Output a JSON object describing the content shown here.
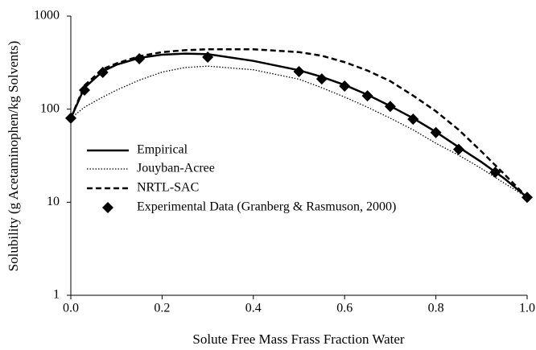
{
  "chart_data": {
    "type": "line",
    "xlabel": "Solute Free Mass Frass Fraction Water",
    "ylabel": "Solubility (g Acetaminophen/kg Solvents)",
    "xlim": [
      0,
      1
    ],
    "ylim": [
      1,
      1000
    ],
    "ylog": true,
    "xticks": [
      {
        "value": 0,
        "label": "0.0"
      },
      0.2,
      0.4,
      0.6,
      0.8,
      {
        "value": 1,
        "label": "1.0"
      }
    ],
    "yticks": [
      1,
      10,
      100,
      1000
    ],
    "legend": "center-left",
    "series": [
      {
        "name": "Empirical",
        "color": "#000000",
        "dash": "solid",
        "x": [
          0,
          0.03,
          0.07,
          0.1,
          0.15,
          0.2,
          0.25,
          0.3,
          0.4,
          0.5,
          0.55,
          0.6,
          0.65,
          0.7,
          0.75,
          0.8,
          0.85,
          0.9,
          0.95,
          1
        ],
        "values": [
          80,
          170,
          255,
          300,
          355,
          385,
          395,
          390,
          330,
          262,
          222,
          182,
          143,
          108,
          80,
          57,
          39,
          27,
          18,
          11.3
        ]
      },
      {
        "name": "Jouyban-Acree",
        "color": "#000000",
        "dash": "dotted",
        "x": [
          0,
          0.03,
          0.07,
          0.1,
          0.15,
          0.2,
          0.25,
          0.3,
          0.4,
          0.5,
          0.55,
          0.6,
          0.65,
          0.7,
          0.75,
          0.8,
          0.85,
          0.9,
          0.95,
          1
        ],
        "values": [
          80,
          105,
          135,
          160,
          205,
          250,
          280,
          290,
          265,
          210,
          170,
          135,
          105,
          80,
          60,
          43,
          32,
          23,
          16,
          11.3
        ]
      },
      {
        "name": "NRTL-SAC",
        "color": "#000000",
        "dash": "dashed",
        "x": [
          0,
          0.03,
          0.07,
          0.1,
          0.15,
          0.2,
          0.25,
          0.3,
          0.4,
          0.5,
          0.55,
          0.6,
          0.65,
          0.7,
          0.75,
          0.8,
          0.85,
          0.9,
          0.95,
          1
        ],
        "values": [
          80,
          180,
          270,
          310,
          370,
          410,
          430,
          440,
          440,
          410,
          375,
          320,
          260,
          200,
          140,
          95,
          60,
          35,
          20,
          11.3
        ]
      },
      {
        "name": "Experimental Data (Granberg & Rasmuson, 2000)",
        "color": "#000000",
        "marker": "diamond",
        "x": [
          0,
          0.03,
          0.07,
          0.15,
          0.3,
          0.5,
          0.55,
          0.6,
          0.65,
          0.7,
          0.75,
          0.8,
          0.85,
          0.93,
          1
        ],
        "values": [
          80,
          160,
          248,
          348,
          362,
          253,
          211,
          177,
          139,
          107,
          78,
          56,
          37,
          21,
          11.3
        ]
      }
    ]
  }
}
